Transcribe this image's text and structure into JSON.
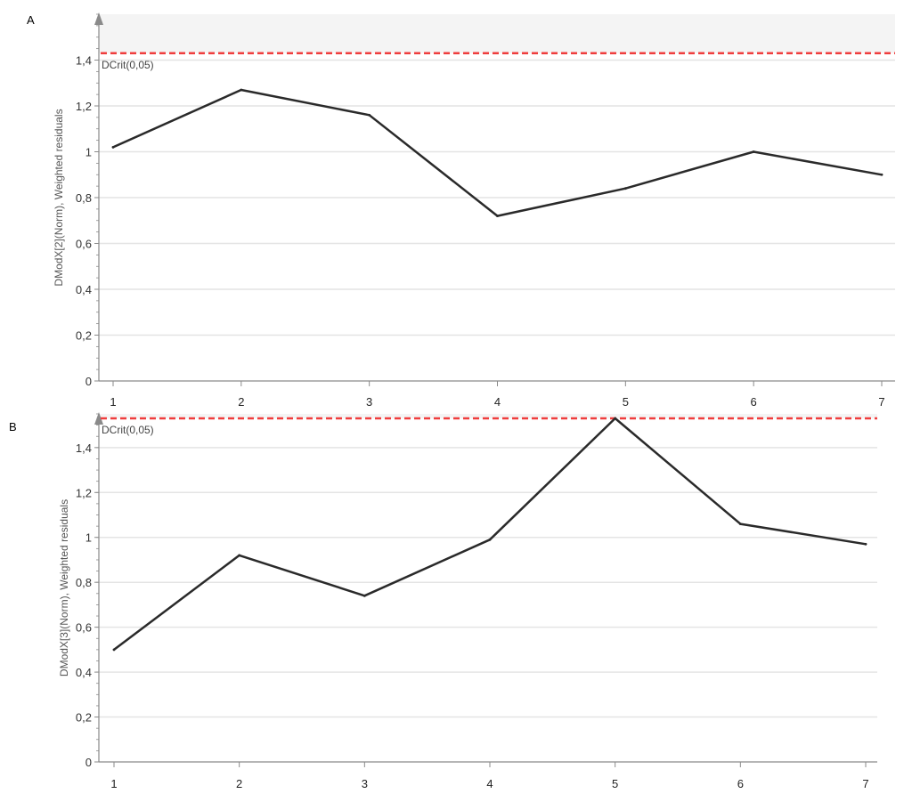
{
  "colors": {
    "line": "#2a2a2a",
    "threshold": "#ef3d3d",
    "grid": "#e4e4e4",
    "axis": "#8a8a8a",
    "shade": "#f4f4f4"
  },
  "chart_data": [
    {
      "panel": "A",
      "type": "line",
      "ylabel": "DModX[2](Norm), Weighted residuals",
      "x": [
        1,
        2,
        3,
        4,
        5,
        6,
        7
      ],
      "x_tick_labels": [
        "1",
        "2",
        "3",
        "4",
        "5",
        "6",
        "7"
      ],
      "y_tick_labels": [
        "0",
        "0,2",
        "0,4",
        "0,6",
        "0,8",
        "1",
        "1,2",
        "1,4"
      ],
      "y_ticks": [
        0,
        0.2,
        0.4,
        0.6,
        0.8,
        1.0,
        1.2,
        1.4
      ],
      "ylim": [
        0,
        1.6
      ],
      "series": [
        {
          "values": [
            1.02,
            1.27,
            1.16,
            0.72,
            0.84,
            1.0,
            0.9
          ]
        }
      ],
      "threshold": {
        "label": "DCrit(0,05)",
        "value": 1.43
      },
      "grid": true
    },
    {
      "panel": "B",
      "type": "line",
      "ylabel": "DModX[3](Norm), Weighted residuals",
      "x": [
        1,
        2,
        3,
        4,
        5,
        6,
        7
      ],
      "x_tick_labels": [
        "1",
        "2",
        "3",
        "4",
        "5",
        "6",
        "7"
      ],
      "y_tick_labels": [
        "0",
        "0,2",
        "0,4",
        "0,6",
        "0,8",
        "1",
        "1,2",
        "1,4"
      ],
      "y_ticks": [
        0,
        0.2,
        0.4,
        0.6,
        0.8,
        1.0,
        1.2,
        1.4
      ],
      "ylim": [
        0,
        1.55
      ],
      "series": [
        {
          "values": [
            0.5,
            0.92,
            0.74,
            0.99,
            1.53,
            1.06,
            0.97
          ]
        }
      ],
      "threshold": {
        "label": "DCrit(0,05)",
        "value": 1.53
      },
      "grid": true
    }
  ]
}
